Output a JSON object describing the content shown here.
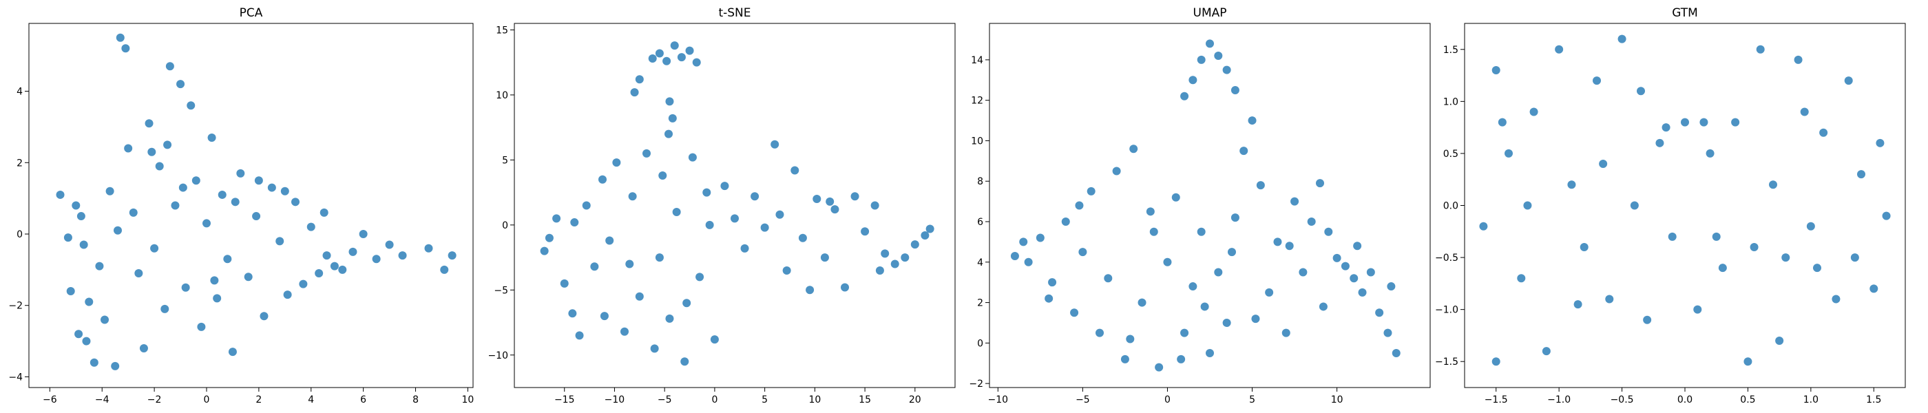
{
  "chart_data": [
    {
      "type": "scatter",
      "title": "PCA",
      "xlabel": "",
      "ylabel": "",
      "xlim": [
        -6.8,
        10.2
      ],
      "ylim": [
        -4.3,
        5.9
      ],
      "xticks": [
        -6,
        -4,
        -2,
        0,
        2,
        4,
        6,
        8,
        10
      ],
      "yticks": [
        -4,
        -2,
        0,
        2,
        4
      ],
      "color": "#1f77b4",
      "grid": false,
      "points": [
        {
          "x": -5.2,
          "y": -1.6
        },
        {
          "x": -4.9,
          "y": -2.8
        },
        {
          "x": -4.7,
          "y": -0.3
        },
        {
          "x": -4.5,
          "y": -1.9
        },
        {
          "x": -4.3,
          "y": -3.6
        },
        {
          "x": -4.1,
          "y": -0.9
        },
        {
          "x": -3.9,
          "y": -2.4
        },
        {
          "x": -3.7,
          "y": 1.2
        },
        {
          "x": -3.5,
          "y": -3.7
        },
        {
          "x": -3.3,
          "y": 5.5
        },
        {
          "x": -3.1,
          "y": 5.2
        },
        {
          "x": -3.0,
          "y": 2.4
        },
        {
          "x": -2.8,
          "y": 0.6
        },
        {
          "x": -2.6,
          "y": -1.1
        },
        {
          "x": -2.4,
          "y": -3.2
        },
        {
          "x": -2.2,
          "y": 3.1
        },
        {
          "x": -2.0,
          "y": -0.4
        },
        {
          "x": -1.8,
          "y": 1.9
        },
        {
          "x": -1.6,
          "y": -2.1
        },
        {
          "x": -1.4,
          "y": 4.7
        },
        {
          "x": -1.2,
          "y": 0.8
        },
        {
          "x": -1.0,
          "y": 4.2
        },
        {
          "x": -0.8,
          "y": -1.5
        },
        {
          "x": -0.6,
          "y": 3.6
        },
        {
          "x": -0.4,
          "y": 1.5
        },
        {
          "x": -0.2,
          "y": -2.6
        },
        {
          "x": 0.0,
          "y": 0.3
        },
        {
          "x": 0.2,
          "y": 2.7
        },
        {
          "x": 0.4,
          "y": -1.8
        },
        {
          "x": 0.6,
          "y": 1.1
        },
        {
          "x": 0.8,
          "y": -0.7
        },
        {
          "x": 1.0,
          "y": -3.3
        },
        {
          "x": 1.3,
          "y": 1.7
        },
        {
          "x": 1.6,
          "y": -1.2
        },
        {
          "x": 1.9,
          "y": 0.5
        },
        {
          "x": 2.2,
          "y": -2.3
        },
        {
          "x": 2.5,
          "y": 1.3
        },
        {
          "x": 2.8,
          "y": -0.2
        },
        {
          "x": 3.1,
          "y": -1.7
        },
        {
          "x": 3.4,
          "y": 0.9
        },
        {
          "x": 3.7,
          "y": -1.4
        },
        {
          "x": 4.0,
          "y": 0.2
        },
        {
          "x": 4.3,
          "y": -1.1
        },
        {
          "x": 4.6,
          "y": -0.6
        },
        {
          "x": 4.9,
          "y": -0.9
        },
        {
          "x": 5.2,
          "y": -1.0
        },
        {
          "x": 5.6,
          "y": -0.5
        },
        {
          "x": 6.0,
          "y": 0.0
        },
        {
          "x": 6.5,
          "y": -0.7
        },
        {
          "x": 7.0,
          "y": -0.3
        },
        {
          "x": 7.5,
          "y": -0.6
        },
        {
          "x": 8.5,
          "y": -0.4
        },
        {
          "x": 9.1,
          "y": -1.0
        },
        {
          "x": 9.4,
          "y": -0.6
        },
        {
          "x": -5.6,
          "y": 1.1
        },
        {
          "x": -5.3,
          "y": -0.1
        },
        {
          "x": -5.0,
          "y": 0.8
        },
        {
          "x": -4.6,
          "y": -3.0
        },
        {
          "x": -3.4,
          "y": 0.1
        },
        {
          "x": -2.1,
          "y": 2.3
        },
        {
          "x": -1.5,
          "y": 2.5
        },
        {
          "x": -0.9,
          "y": 1.3
        },
        {
          "x": 0.3,
          "y": -1.3
        },
        {
          "x": 1.1,
          "y": 0.9
        },
        {
          "x": 2.0,
          "y": 1.5
        },
        {
          "x": 3.0,
          "y": 1.2
        },
        {
          "x": 4.5,
          "y": 0.6
        },
        {
          "x": -4.8,
          "y": 0.5
        }
      ]
    },
    {
      "type": "scatter",
      "title": "t-SNE",
      "xlabel": "",
      "ylabel": "",
      "xlim": [
        -20,
        24
      ],
      "ylim": [
        -12.5,
        15.5
      ],
      "xticks": [
        -15,
        -10,
        -5,
        0,
        5,
        10,
        15,
        20
      ],
      "yticks": [
        -10,
        -5,
        0,
        5,
        10,
        15
      ],
      "color": "#1f77b4",
      "grid": false,
      "points": [
        {
          "x": -5.5,
          "y": 13.2
        },
        {
          "x": -4.8,
          "y": 12.6
        },
        {
          "x": -4.0,
          "y": 13.8
        },
        {
          "x": -3.3,
          "y": 12.9
        },
        {
          "x": -2.5,
          "y": 13.4
        },
        {
          "x": -1.8,
          "y": 12.5
        },
        {
          "x": -6.2,
          "y": 12.8
        },
        {
          "x": -4.5,
          "y": 9.5
        },
        {
          "x": -4.2,
          "y": 8.2
        },
        {
          "x": -4.6,
          "y": 7.0
        },
        {
          "x": -8.0,
          "y": 10.2
        },
        {
          "x": -7.5,
          "y": 11.2
        },
        {
          "x": -17.0,
          "y": -2.0
        },
        {
          "x": -15.8,
          "y": 0.5
        },
        {
          "x": -15.0,
          "y": -4.5
        },
        {
          "x": -14.2,
          "y": -6.8
        },
        {
          "x": -13.5,
          "y": -8.5
        },
        {
          "x": -12.8,
          "y": 1.5
        },
        {
          "x": -12.0,
          "y": -3.2
        },
        {
          "x": -11.2,
          "y": 3.5
        },
        {
          "x": -10.5,
          "y": -1.2
        },
        {
          "x": -9.8,
          "y": 4.8
        },
        {
          "x": -9.0,
          "y": -8.2
        },
        {
          "x": -8.2,
          "y": 2.2
        },
        {
          "x": -7.5,
          "y": -5.5
        },
        {
          "x": -6.8,
          "y": 5.5
        },
        {
          "x": -6.0,
          "y": -9.5
        },
        {
          "x": -5.2,
          "y": 3.8
        },
        {
          "x": -4.5,
          "y": -7.2
        },
        {
          "x": -3.8,
          "y": 1.0
        },
        {
          "x": -3.0,
          "y": -10.5
        },
        {
          "x": -2.2,
          "y": 5.2
        },
        {
          "x": -1.5,
          "y": -4.0
        },
        {
          "x": -0.8,
          "y": 2.5
        },
        {
          "x": 0.0,
          "y": -8.8
        },
        {
          "x": 1.0,
          "y": 3.0
        },
        {
          "x": 2.0,
          "y": 0.5
        },
        {
          "x": 3.0,
          "y": -1.8
        },
        {
          "x": 4.0,
          "y": 2.2
        },
        {
          "x": 6.0,
          "y": 6.2
        },
        {
          "x": 6.5,
          "y": 0.8
        },
        {
          "x": 7.2,
          "y": -3.5
        },
        {
          "x": 8.0,
          "y": 4.2
        },
        {
          "x": 8.8,
          "y": -1.0
        },
        {
          "x": 9.5,
          "y": -5.0
        },
        {
          "x": 10.2,
          "y": 2.0
        },
        {
          "x": 11.0,
          "y": -2.5
        },
        {
          "x": 12.0,
          "y": 1.2
        },
        {
          "x": 13.0,
          "y": -4.8
        },
        {
          "x": 14.0,
          "y": 2.2
        },
        {
          "x": 15.0,
          "y": -0.5
        },
        {
          "x": 16.0,
          "y": 1.5
        },
        {
          "x": 17.0,
          "y": -2.2
        },
        {
          "x": 18.0,
          "y": -3.0
        },
        {
          "x": 19.0,
          "y": -2.5
        },
        {
          "x": 20.0,
          "y": -1.5
        },
        {
          "x": 21.0,
          "y": -0.8
        },
        {
          "x": 21.5,
          "y": -0.3
        },
        {
          "x": -16.5,
          "y": -1.0
        },
        {
          "x": -14.0,
          "y": 0.2
        },
        {
          "x": -11.0,
          "y": -7.0
        },
        {
          "x": -8.5,
          "y": -3.0
        },
        {
          "x": -5.5,
          "y": -2.5
        },
        {
          "x": -2.8,
          "y": -6.0
        },
        {
          "x": -0.5,
          "y": 0.0
        },
        {
          "x": 5.0,
          "y": -0.2
        },
        {
          "x": 11.5,
          "y": 1.8
        },
        {
          "x": 16.5,
          "y": -3.5
        }
      ]
    },
    {
      "type": "scatter",
      "title": "UMAP",
      "xlabel": "",
      "ylabel": "",
      "xlim": [
        -10.5,
        15.5
      ],
      "ylim": [
        -2.2,
        15.8
      ],
      "xticks": [
        -10,
        -5,
        0,
        5,
        10
      ],
      "yticks": [
        -2,
        0,
        2,
        4,
        6,
        8,
        10,
        12,
        14
      ],
      "color": "#1f77b4",
      "grid": false,
      "points": [
        {
          "x": -9.0,
          "y": 4.3
        },
        {
          "x": -8.2,
          "y": 4.0
        },
        {
          "x": -7.5,
          "y": 5.2
        },
        {
          "x": -6.8,
          "y": 3.0
        },
        {
          "x": -6.0,
          "y": 6.0
        },
        {
          "x": -5.5,
          "y": 1.5
        },
        {
          "x": -5.0,
          "y": 4.5
        },
        {
          "x": -4.5,
          "y": 7.5
        },
        {
          "x": -4.0,
          "y": 0.5
        },
        {
          "x": -3.5,
          "y": 3.2
        },
        {
          "x": -3.0,
          "y": 8.5
        },
        {
          "x": -2.5,
          "y": -0.8
        },
        {
          "x": -2.0,
          "y": 9.6
        },
        {
          "x": -1.5,
          "y": 2.0
        },
        {
          "x": -1.0,
          "y": 6.5
        },
        {
          "x": -0.5,
          "y": -1.2
        },
        {
          "x": 0.0,
          "y": 4.0
        },
        {
          "x": 0.5,
          "y": 7.2
        },
        {
          "x": 1.0,
          "y": 12.2
        },
        {
          "x": 1.5,
          "y": 13.0
        },
        {
          "x": 2.0,
          "y": 14.0
        },
        {
          "x": 2.5,
          "y": 14.8
        },
        {
          "x": 3.0,
          "y": 14.2
        },
        {
          "x": 3.5,
          "y": 13.5
        },
        {
          "x": 4.0,
          "y": 12.5
        },
        {
          "x": 1.0,
          "y": 0.5
        },
        {
          "x": 1.5,
          "y": 2.8
        },
        {
          "x": 2.0,
          "y": 5.5
        },
        {
          "x": 2.5,
          "y": -0.5
        },
        {
          "x": 3.0,
          "y": 3.5
        },
        {
          "x": 3.5,
          "y": 1.0
        },
        {
          "x": 4.0,
          "y": 6.2
        },
        {
          "x": 4.5,
          "y": 9.5
        },
        {
          "x": 5.0,
          "y": 11.0
        },
        {
          "x": 5.5,
          "y": 7.8
        },
        {
          "x": 6.0,
          "y": 2.5
        },
        {
          "x": 6.5,
          "y": 5.0
        },
        {
          "x": 7.0,
          "y": 0.5
        },
        {
          "x": 7.5,
          "y": 7.0
        },
        {
          "x": 8.0,
          "y": 3.5
        },
        {
          "x": 8.5,
          "y": 6.0
        },
        {
          "x": 9.0,
          "y": 7.9
        },
        {
          "x": 9.5,
          "y": 5.5
        },
        {
          "x": 10.0,
          "y": 4.2
        },
        {
          "x": 10.5,
          "y": 3.8
        },
        {
          "x": 11.0,
          "y": 3.2
        },
        {
          "x": 11.5,
          "y": 2.5
        },
        {
          "x": 12.0,
          "y": 3.5
        },
        {
          "x": 12.5,
          "y": 1.5
        },
        {
          "x": 13.0,
          "y": 0.5
        },
        {
          "x": 13.5,
          "y": -0.5
        },
        {
          "x": 13.2,
          "y": 2.8
        },
        {
          "x": -8.5,
          "y": 5.0
        },
        {
          "x": -7.0,
          "y": 2.2
        },
        {
          "x": -5.2,
          "y": 6.8
        },
        {
          "x": -2.2,
          "y": 0.2
        },
        {
          "x": -0.8,
          "y": 5.5
        },
        {
          "x": 0.8,
          "y": -0.8
        },
        {
          "x": 2.2,
          "y": 1.8
        },
        {
          "x": 3.8,
          "y": 4.5
        },
        {
          "x": 5.2,
          "y": 1.2
        },
        {
          "x": 7.2,
          "y": 4.8
        },
        {
          "x": 9.2,
          "y": 1.8
        },
        {
          "x": 11.2,
          "y": 4.8
        }
      ]
    },
    {
      "type": "scatter",
      "title": "GTM",
      "xlabel": "",
      "ylabel": "",
      "xlim": [
        -1.75,
        1.75
      ],
      "ylim": [
        -1.75,
        1.75
      ],
      "xticks": [
        -1.5,
        -1.0,
        -0.5,
        0.0,
        0.5,
        1.0,
        1.5
      ],
      "yticks": [
        -1.5,
        -1.0,
        -0.5,
        0.0,
        0.5,
        1.0,
        1.5
      ],
      "color": "#1f77b4",
      "grid": false,
      "points": [
        {
          "x": -1.6,
          "y": -0.2
        },
        {
          "x": -1.5,
          "y": 1.3
        },
        {
          "x": -1.4,
          "y": 0.5
        },
        {
          "x": -1.3,
          "y": -0.7
        },
        {
          "x": -1.2,
          "y": 0.9
        },
        {
          "x": -1.1,
          "y": -1.4
        },
        {
          "x": -1.0,
          "y": 1.5
        },
        {
          "x": -0.9,
          "y": 0.2
        },
        {
          "x": -0.8,
          "y": -0.4
        },
        {
          "x": -0.7,
          "y": 1.2
        },
        {
          "x": -0.6,
          "y": -0.9
        },
        {
          "x": -0.5,
          "y": 1.6
        },
        {
          "x": -0.4,
          "y": 0.0
        },
        {
          "x": -0.3,
          "y": -1.1
        },
        {
          "x": -0.2,
          "y": 0.6
        },
        {
          "x": -0.1,
          "y": -0.3
        },
        {
          "x": 0.0,
          "y": 0.8
        },
        {
          "x": 0.1,
          "y": -1.0
        },
        {
          "x": 0.2,
          "y": 0.5
        },
        {
          "x": 0.3,
          "y": -0.6
        },
        {
          "x": 0.4,
          "y": 0.8
        },
        {
          "x": 0.5,
          "y": -1.5
        },
        {
          "x": 0.6,
          "y": 1.5
        },
        {
          "x": 0.7,
          "y": 0.2
        },
        {
          "x": 0.8,
          "y": -0.5
        },
        {
          "x": 0.9,
          "y": 1.4
        },
        {
          "x": 1.0,
          "y": -0.2
        },
        {
          "x": 1.1,
          "y": 0.7
        },
        {
          "x": 1.2,
          "y": -0.9
        },
        {
          "x": 1.3,
          "y": 1.2
        },
        {
          "x": 1.4,
          "y": 0.3
        },
        {
          "x": 1.5,
          "y": -0.8
        },
        {
          "x": 1.55,
          "y": 0.6
        },
        {
          "x": 1.6,
          "y": -0.1
        },
        {
          "x": -1.5,
          "y": -1.5
        },
        {
          "x": -1.25,
          "y": 0.0
        },
        {
          "x": -0.85,
          "y": -0.95
        },
        {
          "x": -0.35,
          "y": 1.1
        },
        {
          "x": 0.15,
          "y": 0.8
        },
        {
          "x": 0.55,
          "y": -0.4
        },
        {
          "x": 0.95,
          "y": 0.9
        },
        {
          "x": 1.35,
          "y": -0.5
        },
        {
          "x": -1.45,
          "y": 0.8
        },
        {
          "x": -0.65,
          "y": 0.4
        },
        {
          "x": 0.25,
          "y": -0.3
        },
        {
          "x": 0.75,
          "y": -1.3
        },
        {
          "x": 1.05,
          "y": -0.6
        },
        {
          "x": -0.15,
          "y": 0.75
        }
      ]
    }
  ]
}
